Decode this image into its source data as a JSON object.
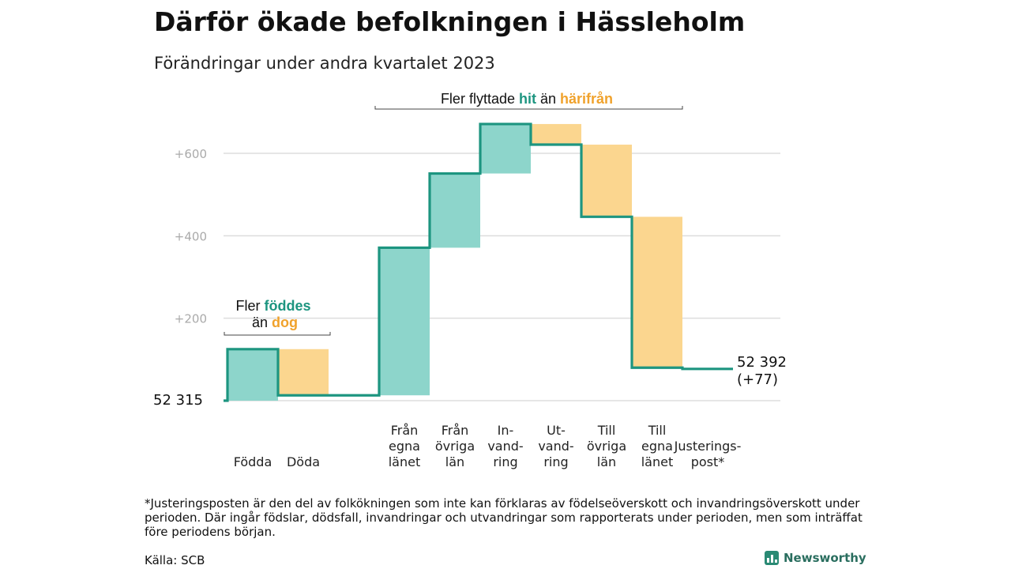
{
  "header": {
    "title": "Därför ökade befolkningen i Hässleholm",
    "subtitle": "Förändringar under andra kvartalet 2023"
  },
  "colors": {
    "positive_fill": "#8dd5cb",
    "negative_fill": "#fbd68f",
    "line": "#1d9580",
    "teal_text": "#1d9580",
    "orange_text": "#f0a22c",
    "grid": "#dddddd"
  },
  "chart_data": {
    "type": "waterfall",
    "start_value": 52315,
    "start_label": "52  315",
    "end_value": 52392,
    "end_label": "52 392",
    "end_change_label": "(+77)",
    "y_ticks": [
      {
        "value": 200,
        "label": "+200"
      },
      {
        "value": 400,
        "label": "+400"
      },
      {
        "value": 600,
        "label": "+600"
      }
    ],
    "ylim": [
      0,
      720
    ],
    "grid": true,
    "steps": [
      {
        "label": [
          "Födda"
        ],
        "delta": 125
      },
      {
        "label": [
          "Döda"
        ],
        "delta": -112
      },
      {
        "label": [],
        "delta": 0
      },
      {
        "label": [
          "Från",
          "egna",
          "länet"
        ],
        "delta": 358
      },
      {
        "label": [
          "Från",
          "övriga",
          "län"
        ],
        "delta": 180
      },
      {
        "label": [
          "In-",
          "vand-",
          "ring"
        ],
        "delta": 120
      },
      {
        "label": [
          "Ut-",
          "vand-",
          "ring"
        ],
        "delta": -50
      },
      {
        "label": [
          "Till",
          "övriga",
          "län"
        ],
        "delta": -175
      },
      {
        "label": [
          "Till",
          "egna",
          "länet"
        ],
        "delta": -366
      },
      {
        "label": [
          "Justerings-",
          "post*"
        ],
        "delta": -3
      }
    ],
    "annotations": [
      {
        "text_plain": "Fler ",
        "text_highlight": "föddes",
        "highlight": "positive"
      },
      {
        "text_plain": "än ",
        "text_highlight": "dog",
        "highlight": "negative"
      },
      {
        "text_plain": "Fler flyttade ",
        "text_highlight": "hit",
        "highlight": "positive",
        "text_plain2": " än ",
        "text_highlight2": "härifrån",
        "highlight2": "negative"
      }
    ]
  },
  "footnote": "*Justeringsposten är den del av folkökningen som inte kan förklaras av födelseöverskott och invandringsöverskott under perioden. Där ingår födslar, dödsfall, invandringar och utvandringar som rapporterats under perioden, men som inträffat före periodens början.",
  "source": "Källa: SCB",
  "brand": {
    "name": "Newsworthy",
    "icon": "bar-chart-icon"
  }
}
